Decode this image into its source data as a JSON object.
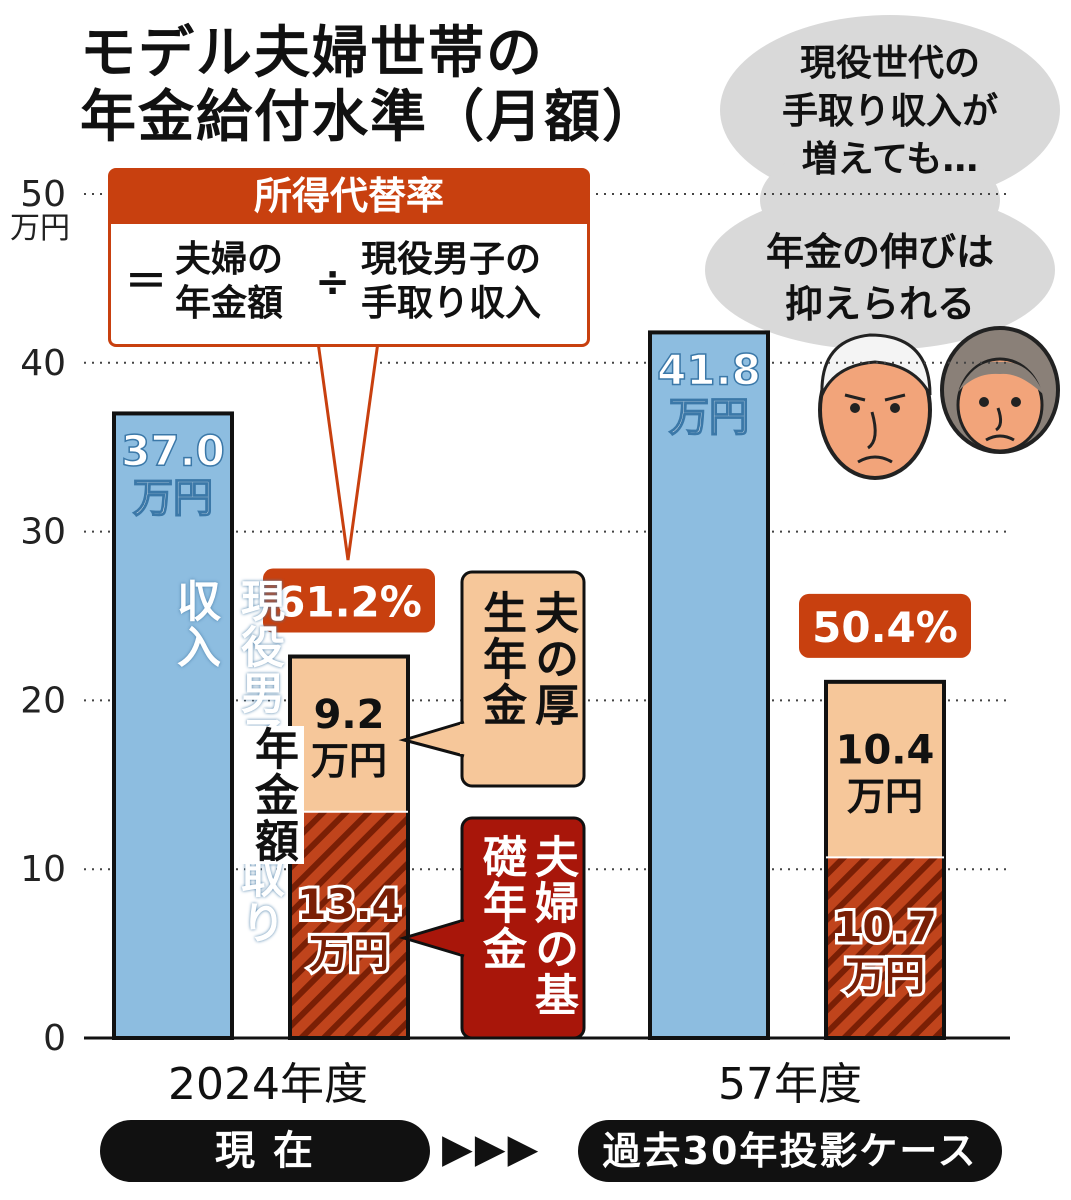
{
  "title": {
    "line1": "モデル夫婦世帯の",
    "line2": "年金給付水準（月額）"
  },
  "definition": {
    "heading": "所得代替率",
    "equals": "＝",
    "numerator_line1": "夫婦の",
    "numerator_line2": "年金額",
    "divide": "÷",
    "denominator_line1": "現役男子の",
    "denominator_line2": "手取り収入"
  },
  "speech": {
    "line1": "現役世代の",
    "line2": "手取り収入が",
    "line3": "増えても…",
    "line4": "年金の伸びは",
    "line5": "抑えられる"
  },
  "labels": {
    "worker_income_vertical": "現役男子の手取り収入",
    "pension_amount_vertical": "年金額",
    "employee_pension_callout": "夫の厚生年金",
    "basic_pension_callout": "夫婦の基礎年金"
  },
  "footer": {
    "current": "現 在",
    "arrows": "▶▶▶",
    "projection": "過去30年投影ケース"
  },
  "colors": {
    "worker_bar": "#8dbde0",
    "employee_pension": "#f6c79a",
    "basic_pension": "#c0441c",
    "basic_pension_hatch": "#7a1f05",
    "rate_badge": "#c8400f",
    "worker_text": "#ffffff",
    "basic_text_outline": "#ffffff"
  },
  "chart_data": {
    "type": "bar",
    "stacked": true,
    "y_unit": "万円",
    "ylim": [
      0,
      50
    ],
    "yticks": [
      0,
      10,
      20,
      30,
      40,
      50
    ],
    "grid": "dotted horizontal",
    "categories": [
      "2024年度",
      "57年度"
    ],
    "worker_income": {
      "values": [
        37.0,
        41.8
      ],
      "value_labels": [
        "37.0",
        "41.8"
      ],
      "unit_label": "万円"
    },
    "pension_stack": [
      {
        "component": "basic",
        "values": [
          13.4,
          10.7
        ],
        "value_labels": [
          "13.4",
          "10.7"
        ],
        "unit_label": "万円"
      },
      {
        "component": "employee",
        "values": [
          9.2,
          10.4
        ],
        "value_labels": [
          "9.2",
          "10.4"
        ],
        "unit_label": "万円"
      }
    ],
    "replacement_rate": [
      "61.2%",
      "50.4%"
    ]
  }
}
